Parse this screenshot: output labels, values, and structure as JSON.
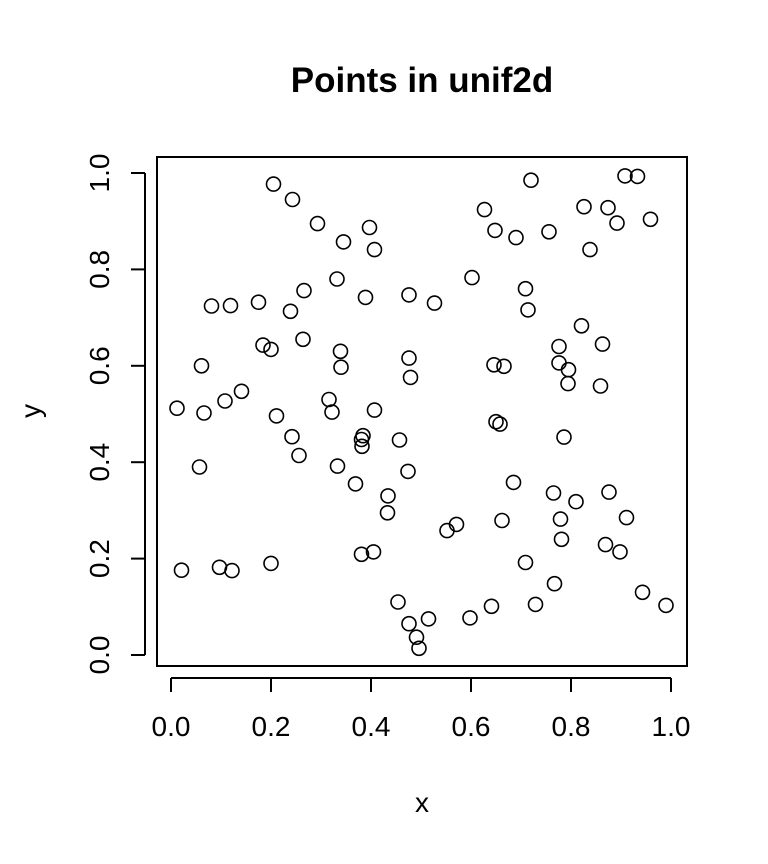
{
  "chart_data": {
    "type": "scatter",
    "title": "Points in unif2d",
    "xlabel": "x",
    "ylabel": "y",
    "xlim": [
      0,
      1
    ],
    "ylim": [
      0,
      1
    ],
    "xticks": [
      "0.0",
      "0.2",
      "0.4",
      "0.6",
      "0.8",
      "1.0"
    ],
    "yticks": [
      "0.0",
      "0.2",
      "0.4",
      "0.6",
      "0.8",
      "1.0"
    ],
    "grid": false,
    "marker": "open-circle",
    "points": [
      [
        0.205,
        0.977
      ],
      [
        0.243,
        0.945
      ],
      [
        0.293,
        0.895
      ],
      [
        0.345,
        0.857
      ],
      [
        0.397,
        0.887
      ],
      [
        0.407,
        0.841
      ],
      [
        0.332,
        0.78
      ],
      [
        0.389,
        0.742
      ],
      [
        0.266,
        0.756
      ],
      [
        0.239,
        0.713
      ],
      [
        0.081,
        0.724
      ],
      [
        0.119,
        0.725
      ],
      [
        0.175,
        0.732
      ],
      [
        0.184,
        0.643
      ],
      [
        0.2,
        0.634
      ],
      [
        0.264,
        0.655
      ],
      [
        0.061,
        0.6
      ],
      [
        0.339,
        0.63
      ],
      [
        0.34,
        0.597
      ],
      [
        0.012,
        0.512
      ],
      [
        0.066,
        0.502
      ],
      [
        0.108,
        0.527
      ],
      [
        0.141,
        0.547
      ],
      [
        0.211,
        0.496
      ],
      [
        0.316,
        0.53
      ],
      [
        0.322,
        0.504
      ],
      [
        0.407,
        0.508
      ],
      [
        0.242,
        0.453
      ],
      [
        0.256,
        0.414
      ],
      [
        0.384,
        0.455
      ],
      [
        0.381,
        0.447
      ],
      [
        0.382,
        0.433
      ],
      [
        0.057,
        0.39
      ],
      [
        0.333,
        0.392
      ],
      [
        0.369,
        0.355
      ],
      [
        0.434,
        0.33
      ],
      [
        0.433,
        0.295
      ],
      [
        0.457,
        0.446
      ],
      [
        0.474,
        0.381
      ],
      [
        0.476,
        0.616
      ],
      [
        0.479,
        0.576
      ],
      [
        0.476,
        0.747
      ],
      [
        0.527,
        0.73
      ],
      [
        0.602,
        0.783
      ],
      [
        0.627,
        0.924
      ],
      [
        0.648,
        0.881
      ],
      [
        0.69,
        0.866
      ],
      [
        0.72,
        0.985
      ],
      [
        0.756,
        0.878
      ],
      [
        0.826,
        0.93
      ],
      [
        0.838,
        0.841
      ],
      [
        0.874,
        0.928
      ],
      [
        0.892,
        0.896
      ],
      [
        0.908,
        0.994
      ],
      [
        0.933,
        0.993
      ],
      [
        0.959,
        0.904
      ],
      [
        0.709,
        0.76
      ],
      [
        0.714,
        0.716
      ],
      [
        0.821,
        0.683
      ],
      [
        0.776,
        0.64
      ],
      [
        0.776,
        0.606
      ],
      [
        0.794,
        0.563
      ],
      [
        0.795,
        0.592
      ],
      [
        0.863,
        0.645
      ],
      [
        0.859,
        0.558
      ],
      [
        0.646,
        0.602
      ],
      [
        0.666,
        0.599
      ],
      [
        0.65,
        0.484
      ],
      [
        0.658,
        0.479
      ],
      [
        0.786,
        0.452
      ],
      [
        0.685,
        0.358
      ],
      [
        0.765,
        0.336
      ],
      [
        0.81,
        0.318
      ],
      [
        0.876,
        0.338
      ],
      [
        0.662,
        0.279
      ],
      [
        0.779,
        0.282
      ],
      [
        0.781,
        0.24
      ],
      [
        0.869,
        0.229
      ],
      [
        0.898,
        0.214
      ],
      [
        0.911,
        0.285
      ],
      [
        0.552,
        0.258
      ],
      [
        0.571,
        0.271
      ],
      [
        0.709,
        0.192
      ],
      [
        0.767,
        0.148
      ],
      [
        0.729,
        0.105
      ],
      [
        0.641,
        0.101
      ],
      [
        0.598,
        0.077
      ],
      [
        0.943,
        0.13
      ],
      [
        0.99,
        0.103
      ],
      [
        0.021,
        0.176
      ],
      [
        0.097,
        0.182
      ],
      [
        0.122,
        0.175
      ],
      [
        0.2,
        0.19
      ],
      [
        0.381,
        0.209
      ],
      [
        0.405,
        0.214
      ],
      [
        0.454,
        0.11
      ],
      [
        0.476,
        0.065
      ],
      [
        0.515,
        0.075
      ],
      [
        0.491,
        0.037
      ],
      [
        0.496,
        0.014
      ]
    ]
  }
}
